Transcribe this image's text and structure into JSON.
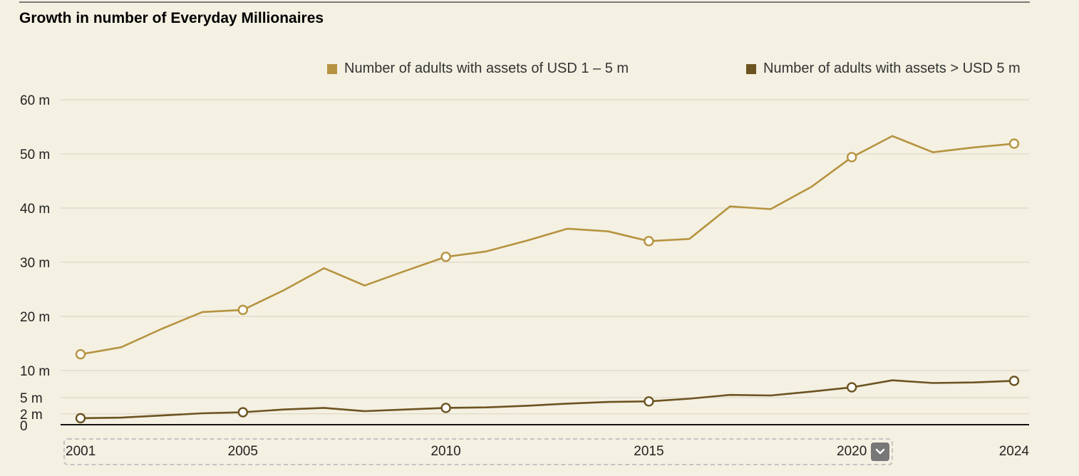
{
  "chart_data": {
    "type": "line",
    "title": "Growth in number of Everyday Millionaires",
    "x": [
      2001,
      2002,
      2003,
      2004,
      2005,
      2006,
      2007,
      2008,
      2009,
      2010,
      2011,
      2012,
      2013,
      2014,
      2015,
      2016,
      2017,
      2018,
      2019,
      2020,
      2021,
      2022,
      2023,
      2024
    ],
    "x_ticks": [
      "2001",
      "2005",
      "2010",
      "2015",
      "2020",
      "2024"
    ],
    "marker_years": [
      2001,
      2005,
      2010,
      2015,
      2020,
      2024
    ],
    "y_ticks": [
      {
        "value": 0,
        "label": "0"
      },
      {
        "value": 2,
        "label": "2 m"
      },
      {
        "value": 5,
        "label": "5 m"
      },
      {
        "value": 10,
        "label": "10 m"
      },
      {
        "value": 20,
        "label": "20 m"
      },
      {
        "value": 30,
        "label": "30 m"
      },
      {
        "value": 40,
        "label": "40 m"
      },
      {
        "value": 50,
        "label": "50 m"
      },
      {
        "value": 60,
        "label": "60 m"
      }
    ],
    "ylim": [
      0,
      60
    ],
    "unit": "m",
    "grid": true,
    "legend_position": "top-right",
    "series": [
      {
        "name": "Number of adults with assets of USD 1 – 5 m",
        "color": "#b69340",
        "values": [
          13.0,
          14.3,
          17.7,
          20.8,
          21.2,
          24.8,
          28.9,
          25.7,
          28.4,
          31.0,
          32.0,
          34.0,
          36.2,
          35.7,
          33.9,
          34.3,
          40.3,
          39.8,
          43.9,
          49.4,
          53.3,
          50.3,
          51.2,
          51.9
        ]
      },
      {
        "name": "Number of adults with assets > USD 5 m",
        "color": "#6c5320",
        "values": [
          1.2,
          1.3,
          1.7,
          2.1,
          2.3,
          2.8,
          3.1,
          2.5,
          2.8,
          3.1,
          3.2,
          3.5,
          3.9,
          4.2,
          4.3,
          4.8,
          5.5,
          5.4,
          6.1,
          6.9,
          8.2,
          7.7,
          7.8,
          8.1
        ]
      }
    ]
  }
}
